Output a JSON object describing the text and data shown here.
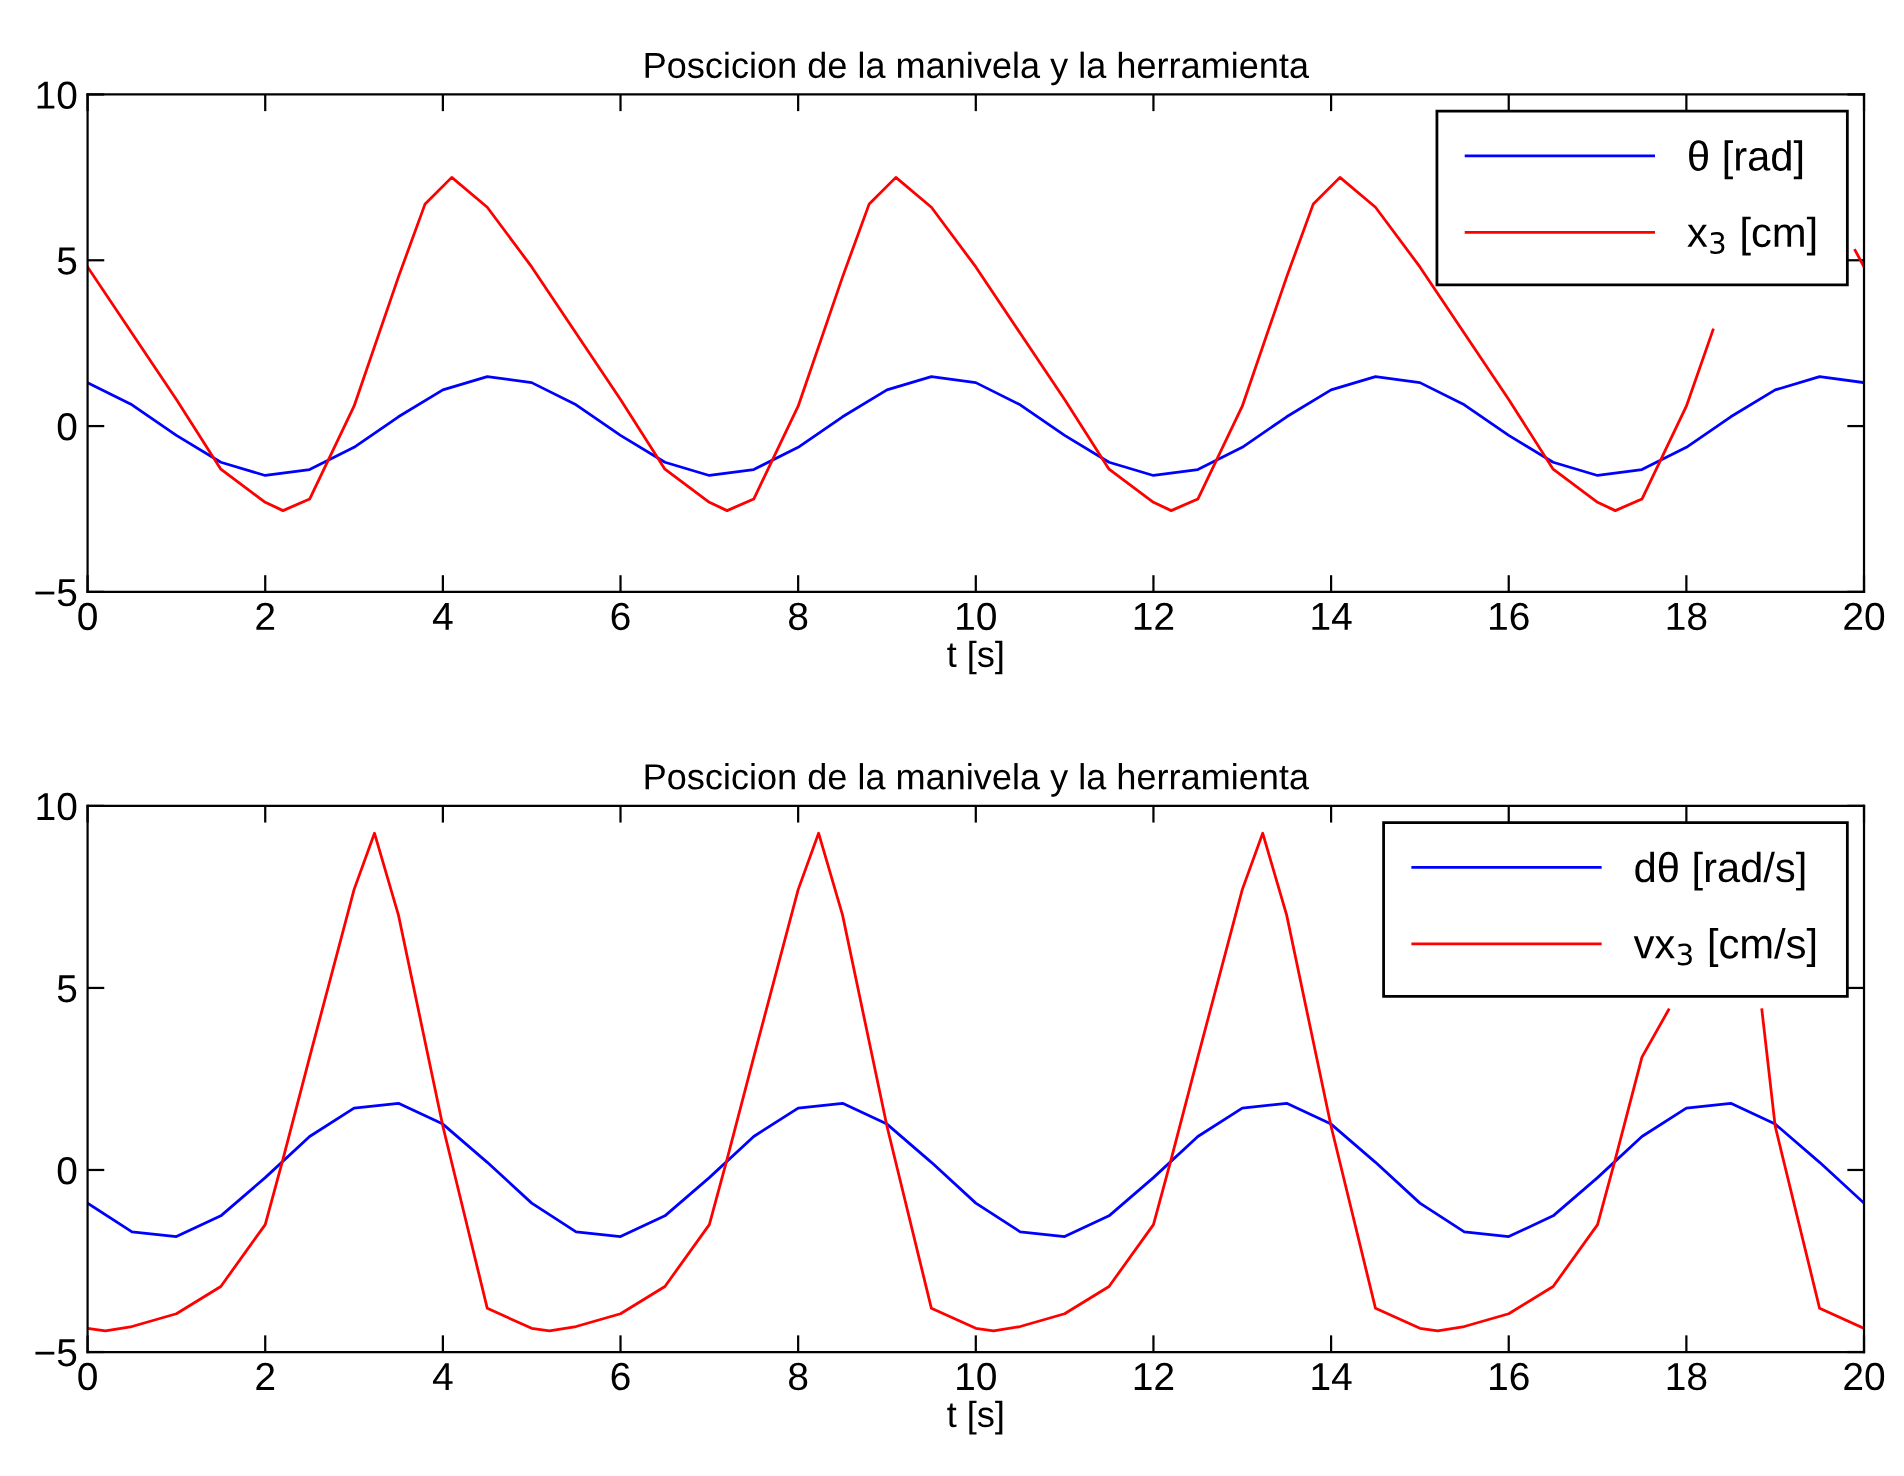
{
  "chart_data": [
    {
      "type": "line",
      "title": "Poscicion de la manivela y la herramienta",
      "xlabel": "t [s]",
      "xlim": [
        0,
        20
      ],
      "xticks": [
        0,
        2,
        4,
        6,
        8,
        10,
        12,
        14,
        16,
        18,
        20
      ],
      "ylim": [
        -5,
        10
      ],
      "yticks": [
        -5,
        0,
        5,
        10
      ],
      "grid": false,
      "legend": "top right",
      "line_style": "solid",
      "marker": "none",
      "series": [
        {
          "name": "θ [rad]",
          "color": "#0000ff",
          "x": [
            0,
            0.5,
            1,
            1.5,
            2,
            2.5,
            3,
            3.5,
            4,
            4.5,
            5,
            5.5,
            6,
            6.5,
            7,
            7.5,
            8,
            8.5,
            9,
            9.5,
            10,
            10.5,
            11,
            11.5,
            12,
            12.5,
            13,
            13.5,
            14,
            14.5,
            15,
            15.5,
            16,
            16.5,
            17,
            17.5,
            18,
            18.5,
            19,
            19.5,
            20
          ],
          "values": [
            1.31,
            0.64,
            -0.28,
            -1.09,
            -1.49,
            -1.31,
            -0.64,
            0.28,
            1.09,
            1.49,
            1.31,
            0.64,
            -0.28,
            -1.09,
            -1.49,
            -1.31,
            -0.64,
            0.28,
            1.09,
            1.49,
            1.31,
            0.64,
            -0.28,
            -1.09,
            -1.49,
            -1.31,
            -0.64,
            0.28,
            1.09,
            1.49,
            1.31,
            0.64,
            -0.28,
            -1.09,
            -1.49,
            -1.31,
            -0.64,
            0.28,
            1.09,
            1.49,
            1.31
          ]
        },
        {
          "name": "x$_{3}$ [cm]",
          "color": "#ff0000",
          "x": [
            0,
            0.5,
            1,
            1.5,
            2,
            2.2,
            2.5,
            3,
            3.5,
            3.8,
            4.1,
            4.5,
            5,
            5.5,
            6,
            6.5,
            7,
            7.2,
            7.5,
            8,
            8.5,
            8.8,
            9.1,
            9.5,
            10,
            10.5,
            11,
            11.5,
            12,
            12.2,
            12.5,
            13,
            13.5,
            13.8,
            14.1,
            14.5,
            15,
            15.5,
            16,
            16.5,
            17,
            17.2,
            17.5,
            18,
            18.3,
            18.5,
            18.8,
            19.1,
            19.5,
            19.9,
            20
          ],
          "values": [
            4.8,
            2.8,
            0.8,
            -1.3,
            -2.3,
            -2.55,
            -2.2,
            0.6,
            4.5,
            6.7,
            7.5,
            6.6,
            4.8,
            2.8,
            0.8,
            -1.3,
            -2.3,
            -2.55,
            -2.2,
            0.6,
            4.5,
            6.7,
            7.5,
            6.6,
            4.8,
            2.8,
            0.8,
            -1.3,
            -2.3,
            -2.55,
            -2.2,
            0.6,
            4.5,
            6.7,
            7.5,
            6.6,
            4.8,
            2.8,
            0.8,
            -1.3,
            -2.3,
            -2.55,
            -2.2,
            0.6,
            2.9,
            null,
            null,
            null,
            null,
            5.3,
            4.8
          ]
        }
      ]
    },
    {
      "type": "line",
      "title": "Poscicion de la manivela y la herramienta",
      "xlabel": "t [s]",
      "xlim": [
        0,
        20
      ],
      "xticks": [
        0,
        2,
        4,
        6,
        8,
        10,
        12,
        14,
        16,
        18,
        20
      ],
      "ylim": [
        -5,
        10
      ],
      "yticks": [
        -5,
        0,
        5,
        10
      ],
      "grid": false,
      "legend": "top right",
      "line_style": "solid",
      "marker": "none",
      "series": [
        {
          "name": "dθ [rad/s]",
          "color": "#0000ff",
          "x": [
            0,
            0.5,
            1,
            1.5,
            2,
            2.5,
            3,
            3.5,
            4,
            4.5,
            5,
            5.5,
            6,
            6.5,
            7,
            7.5,
            8,
            8.5,
            9,
            9.5,
            10,
            10.5,
            11,
            11.5,
            12,
            12.5,
            13,
            13.5,
            14,
            14.5,
            15,
            15.5,
            16,
            16.5,
            17,
            17.5,
            18,
            18.5,
            19,
            19.5,
            20
          ],
          "values": [
            -0.91,
            -1.7,
            -1.83,
            -1.26,
            -0.21,
            0.92,
            1.7,
            1.83,
            1.26,
            0.21,
            -0.91,
            -1.7,
            -1.83,
            -1.26,
            -0.21,
            0.92,
            1.7,
            1.83,
            1.26,
            0.21,
            -0.91,
            -1.7,
            -1.83,
            -1.26,
            -0.21,
            0.92,
            1.7,
            1.83,
            1.26,
            0.21,
            -0.91,
            -1.7,
            -1.83,
            -1.26,
            -0.21,
            0.92,
            1.7,
            1.83,
            1.26,
            0.21,
            -0.91
          ]
        },
        {
          "name": "vx$_{3}$ [cm/s]",
          "color": "#ff0000",
          "x": [
            0,
            0.2,
            0.5,
            1,
            1.5,
            2,
            2.2,
            2.5,
            3,
            3.23,
            3.5,
            4,
            4.5,
            5,
            5.2,
            5.5,
            6,
            6.5,
            7,
            7.2,
            7.5,
            8,
            8.23,
            8.5,
            9,
            9.5,
            10,
            10.2,
            10.5,
            11,
            11.5,
            12,
            12.2,
            12.5,
            13,
            13.23,
            13.5,
            14,
            14.5,
            15,
            15.2,
            15.5,
            16,
            16.5,
            17,
            17.2,
            17.5,
            17.8,
            18,
            18.23,
            18.5,
            18.85,
            19,
            19.5,
            20
          ],
          "values": [
            -4.35,
            -4.42,
            -4.3,
            -3.95,
            -3.2,
            -1.5,
            0.3,
            3.1,
            7.7,
            9.25,
            7.0,
            1.2,
            -3.8,
            -4.35,
            -4.42,
            -4.3,
            -3.95,
            -3.2,
            -1.5,
            0.3,
            3.1,
            7.7,
            9.25,
            7.0,
            1.2,
            -3.8,
            -4.35,
            -4.42,
            -4.3,
            -3.95,
            -3.2,
            -1.5,
            0.3,
            3.1,
            7.7,
            9.25,
            7.0,
            1.2,
            -3.8,
            -4.35,
            -4.42,
            -4.3,
            -3.95,
            -3.2,
            -1.5,
            0.3,
            3.1,
            4.4,
            null,
            null,
            null,
            4.4,
            1.2,
            -3.8,
            -4.35
          ]
        }
      ]
    }
  ]
}
